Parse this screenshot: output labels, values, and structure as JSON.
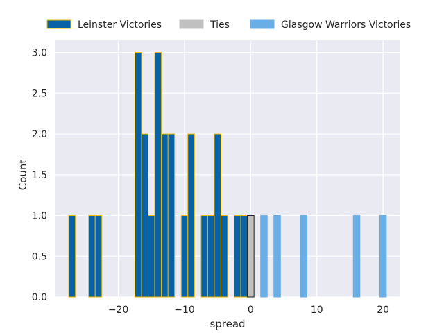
{
  "chart_data": {
    "type": "bar",
    "title": "",
    "xlabel": "spread",
    "ylabel": "Count",
    "xlim": [
      -29.5,
      22.5
    ],
    "ylim": [
      0,
      3.15
    ],
    "xticks": [
      -20,
      -10,
      0,
      10,
      20
    ],
    "xtick_labels": [
      "−20",
      "−10",
      "0",
      "10",
      "20"
    ],
    "yticks": [
      0,
      0.5,
      1,
      1.5,
      2,
      2.5,
      3
    ],
    "ytick_labels": [
      "0.0",
      "0.5",
      "1.0",
      "1.5",
      "2.0",
      "2.5",
      "3.0"
    ],
    "grid": true,
    "legend_position": "top",
    "series": [
      {
        "name": "Leinster Victories",
        "color": "#0a62a6",
        "edge_color": "#e8b800",
        "bins": [
          {
            "x0": -27.5,
            "x1": -26.5,
            "count": 1
          },
          {
            "x0": -24.5,
            "x1": -23.5,
            "count": 1
          },
          {
            "x0": -23.5,
            "x1": -22.5,
            "count": 1
          },
          {
            "x0": -17.5,
            "x1": -16.5,
            "count": 3
          },
          {
            "x0": -16.5,
            "x1": -15.5,
            "count": 2
          },
          {
            "x0": -15.5,
            "x1": -14.5,
            "count": 1
          },
          {
            "x0": -14.5,
            "x1": -13.5,
            "count": 3
          },
          {
            "x0": -13.5,
            "x1": -12.5,
            "count": 2
          },
          {
            "x0": -12.5,
            "x1": -11.5,
            "count": 2
          },
          {
            "x0": -10.5,
            "x1": -9.5,
            "count": 1
          },
          {
            "x0": -9.5,
            "x1": -8.5,
            "count": 2
          },
          {
            "x0": -7.5,
            "x1": -6.5,
            "count": 1
          },
          {
            "x0": -6.5,
            "x1": -5.5,
            "count": 1
          },
          {
            "x0": -5.5,
            "x1": -4.5,
            "count": 2
          },
          {
            "x0": -4.5,
            "x1": -3.5,
            "count": 1
          },
          {
            "x0": -2.5,
            "x1": -1.5,
            "count": 1
          },
          {
            "x0": -1.5,
            "x1": -0.5,
            "count": 1
          }
        ]
      },
      {
        "name": "Ties",
        "color": "#c0c0c0",
        "edge_color": "#1a1a1a",
        "bins": [
          {
            "x0": -0.5,
            "x1": 0.5,
            "count": 1
          }
        ]
      },
      {
        "name": "Glasgow Warriors Victories",
        "color": "#6aaee6",
        "edge_color": "#6aaee6",
        "bins": [
          {
            "x0": 1.5,
            "x1": 2.5,
            "count": 1
          },
          {
            "x0": 3.5,
            "x1": 4.5,
            "count": 1
          },
          {
            "x0": 7.5,
            "x1": 8.5,
            "count": 1
          },
          {
            "x0": 15.5,
            "x1": 16.5,
            "count": 1
          },
          {
            "x0": 19.5,
            "x1": 20.5,
            "count": 1
          }
        ]
      }
    ],
    "colors": {
      "plot_background": "#eaeaf2",
      "grid": "#ffffff",
      "text": "#262626"
    }
  }
}
